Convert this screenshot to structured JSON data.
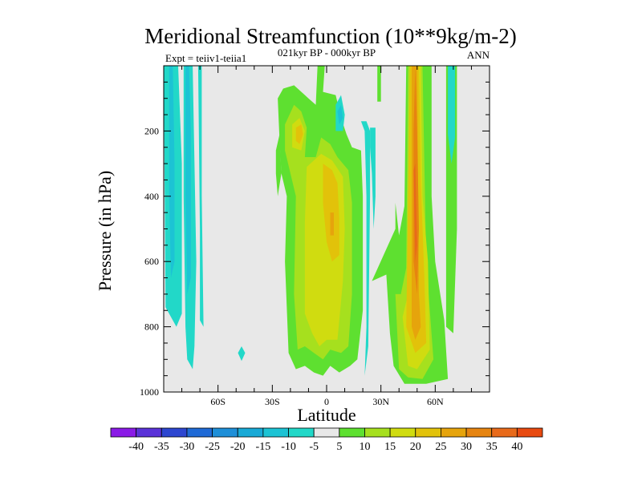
{
  "chart_data": {
    "type": "contour",
    "title": "Meridional Streamfunction (10**9kg/m-2)",
    "subtitle_left": "Expt = teiiv1-teiia1",
    "subtitle_center": "021kyr BP - 000kyr BP",
    "subtitle_right": "ANN",
    "xlabel": "Latitude",
    "ylabel": "Pressure (in hPa)",
    "xlim": [
      -90,
      90
    ],
    "ylim": [
      1000,
      0
    ],
    "x_ticks": [
      {
        "value": -60,
        "label": "60S"
      },
      {
        "value": -30,
        "label": "30S"
      },
      {
        "value": 0,
        "label": "0"
      },
      {
        "value": 30,
        "label": "30N"
      },
      {
        "value": 60,
        "label": "60N"
      }
    ],
    "y_ticks": [
      {
        "value": 200,
        "label": "200"
      },
      {
        "value": 400,
        "label": "400"
      },
      {
        "value": 600,
        "label": "600"
      },
      {
        "value": 800,
        "label": "800"
      },
      {
        "value": 1000,
        "label": "1000"
      }
    ],
    "colorbar": {
      "levels": [
        -40,
        -35,
        -30,
        -25,
        -20,
        -15,
        -10,
        -5,
        5,
        10,
        15,
        20,
        25,
        30,
        35,
        40
      ],
      "labels": [
        "-40",
        "-35",
        "-30",
        "-25",
        "-20",
        "-15",
        "-10",
        "-5",
        "5",
        "10",
        "15",
        "20",
        "25",
        "30",
        "35",
        "40"
      ],
      "colors": [
        "#8a1ae6",
        "#5a32d8",
        "#2d46d0",
        "#1f6ad6",
        "#1e8fd8",
        "#18a9d6",
        "#1cc3d4",
        "#22d8c8",
        "#e8e8e8",
        "#5ee030",
        "#a6e01e",
        "#d0dc10",
        "#e2c20a",
        "#e6a40c",
        "#e68410",
        "#e86a1a",
        "#e84a10"
      ]
    },
    "regions": [
      {
        "level": -5,
        "polygon": [
          [
            -90,
            0
          ],
          [
            -89,
            740
          ],
          [
            -83,
            800
          ],
          [
            -80,
            760
          ],
          [
            -80,
            300
          ],
          [
            -82,
            0
          ]
        ]
      },
      {
        "level": -5,
        "polygon": [
          [
            -79,
            0
          ],
          [
            -79,
            400
          ],
          [
            -78,
            800
          ],
          [
            -77,
            900
          ],
          [
            -74,
            930
          ],
          [
            -73,
            860
          ],
          [
            -72,
            600
          ],
          [
            -74,
            0
          ]
        ]
      },
      {
        "level": -5,
        "polygon": [
          [
            -71,
            0
          ],
          [
            -70,
            500
          ],
          [
            -70,
            780
          ],
          [
            -68,
            800
          ],
          [
            -69,
            400
          ],
          [
            -69,
            0
          ]
        ]
      },
      {
        "level": -10,
        "polygon": [
          [
            -78,
            0
          ],
          [
            -78,
            400
          ],
          [
            -77,
            700
          ],
          [
            -75,
            650
          ],
          [
            -75,
            200
          ],
          [
            -76,
            0
          ]
        ]
      },
      {
        "level": -10,
        "polygon": [
          [
            -87,
            0
          ],
          [
            -87,
            400
          ],
          [
            -86,
            650
          ],
          [
            -84,
            600
          ],
          [
            -84,
            300
          ],
          [
            -85,
            0
          ]
        ]
      },
      {
        "level": -5,
        "polygon": [
          [
            -49,
            880
          ],
          [
            -47,
            860
          ],
          [
            -45,
            880
          ],
          [
            -47,
            905
          ]
        ]
      },
      {
        "level": 5,
        "polygon": [
          [
            -28,
            260
          ],
          [
            -26,
            210
          ],
          [
            -25,
            330
          ],
          [
            -27,
            400
          ],
          [
            -28,
            330
          ]
        ]
      },
      {
        "level": 5,
        "polygon": [
          [
            -27,
            100
          ],
          [
            -24,
            70
          ],
          [
            -18,
            60
          ],
          [
            -10,
            100
          ],
          [
            -6,
            120
          ],
          [
            -5,
            0
          ],
          [
            -1,
            0
          ],
          [
            -2,
            80
          ],
          [
            5,
            90
          ],
          [
            8,
            160
          ],
          [
            11,
            210
          ],
          [
            14,
            250
          ],
          [
            19,
            260
          ],
          [
            20,
            400
          ],
          [
            20,
            750
          ],
          [
            17,
            900
          ],
          [
            13,
            920
          ],
          [
            7,
            940
          ],
          [
            2,
            920
          ],
          [
            -2,
            950
          ],
          [
            -7,
            940
          ],
          [
            -12,
            920
          ],
          [
            -17,
            930
          ],
          [
            -21,
            880
          ],
          [
            -23,
            600
          ],
          [
            -22,
            400
          ],
          [
            -25,
            330
          ],
          [
            -26,
            230
          ]
        ]
      },
      {
        "level": 10,
        "polygon": [
          [
            -23,
            180
          ],
          [
            -18,
            120
          ],
          [
            -14,
            140
          ],
          [
            -11,
            190
          ],
          [
            -12,
            280
          ],
          [
            -6,
            280
          ],
          [
            -3,
            220
          ],
          [
            2,
            240
          ],
          [
            6,
            280
          ],
          [
            12,
            320
          ],
          [
            14,
            420
          ],
          [
            14,
            700
          ],
          [
            12,
            860
          ],
          [
            8,
            880
          ],
          [
            2,
            870
          ],
          [
            -2,
            900
          ],
          [
            -7,
            880
          ],
          [
            -12,
            860
          ],
          [
            -16,
            870
          ],
          [
            -18,
            700
          ],
          [
            -17,
            400
          ],
          [
            -20,
            330
          ],
          [
            -23,
            260
          ]
        ]
      },
      {
        "level": 15,
        "polygon": [
          [
            -19,
            180
          ],
          [
            -15,
            160
          ],
          [
            -12,
            200
          ],
          [
            -14,
            260
          ],
          [
            -19,
            250
          ]
        ]
      },
      {
        "level": 15,
        "polygon": [
          [
            -11,
            310
          ],
          [
            -3,
            270
          ],
          [
            3,
            290
          ],
          [
            9,
            340
          ],
          [
            10,
            500
          ],
          [
            9,
            660
          ],
          [
            6,
            840
          ],
          [
            0,
            840
          ],
          [
            -4,
            860
          ],
          [
            -8,
            820
          ],
          [
            -12,
            760
          ],
          [
            -12,
            480
          ]
        ]
      },
      {
        "level": 20,
        "polygon": [
          [
            -17,
            190
          ],
          [
            -14,
            180
          ],
          [
            -13,
            210
          ],
          [
            -15,
            240
          ],
          [
            -17,
            230
          ]
        ]
      },
      {
        "level": 20,
        "polygon": [
          [
            -2,
            300
          ],
          [
            3,
            320
          ],
          [
            6,
            360
          ],
          [
            7,
            470
          ],
          [
            7,
            580
          ],
          [
            3,
            600
          ],
          [
            0,
            540
          ],
          [
            -2,
            420
          ]
        ]
      },
      {
        "level": 25,
        "polygon": [
          [
            2,
            450
          ],
          [
            4,
            450
          ],
          [
            4,
            520
          ],
          [
            2,
            520
          ]
        ]
      },
      {
        "level": -5,
        "polygon": [
          [
            5,
            120
          ],
          [
            8,
            90
          ],
          [
            10,
            150
          ],
          [
            9,
            200
          ],
          [
            5,
            200
          ]
        ]
      },
      {
        "level": -10,
        "polygon": [
          [
            6,
            140
          ],
          [
            8,
            120
          ],
          [
            9,
            160
          ],
          [
            7,
            180
          ]
        ]
      },
      {
        "level": -5,
        "polygon": [
          [
            19,
            170
          ],
          [
            21,
            200
          ],
          [
            22,
            400
          ],
          [
            22,
            800
          ],
          [
            21,
            950
          ],
          [
            23,
            860
          ],
          [
            24,
            400
          ],
          [
            24,
            200
          ],
          [
            22,
            170
          ]
        ]
      },
      {
        "level": -5,
        "polygon": [
          [
            24,
            190
          ],
          [
            27,
            190
          ],
          [
            27,
            400
          ],
          [
            26,
            500
          ],
          [
            25,
            330
          ],
          [
            24,
            250
          ]
        ]
      },
      {
        "level": 5,
        "polygon": [
          [
            28,
            0
          ],
          [
            30,
            0
          ],
          [
            30,
            110
          ],
          [
            28,
            110
          ]
        ]
      },
      {
        "level": 5,
        "polygon": [
          [
            25,
            660
          ],
          [
            33,
            640
          ],
          [
            35,
            820
          ],
          [
            37,
            920
          ],
          [
            43,
            975
          ],
          [
            55,
            975
          ],
          [
            67,
            960
          ],
          [
            65,
            780
          ],
          [
            60,
            600
          ],
          [
            58,
            400
          ],
          [
            58,
            0
          ],
          [
            44,
            0
          ],
          [
            43,
            430
          ],
          [
            40,
            520
          ],
          [
            38,
            420
          ],
          [
            38,
            500
          ]
        ]
      },
      {
        "level": 10,
        "polygon": [
          [
            38,
            700
          ],
          [
            41,
            700
          ],
          [
            44,
            620
          ],
          [
            45,
            0
          ],
          [
            53,
            0
          ],
          [
            55,
            600
          ],
          [
            59,
            900
          ],
          [
            53,
            960
          ],
          [
            45,
            955
          ],
          [
            40,
            930
          ]
        ]
      },
      {
        "level": 15,
        "polygon": [
          [
            42,
            770
          ],
          [
            45,
            700
          ],
          [
            46,
            0
          ],
          [
            52,
            0
          ],
          [
            53,
            400
          ],
          [
            56,
            600
          ],
          [
            57,
            870
          ],
          [
            50,
            930
          ],
          [
            45,
            920
          ]
        ]
      },
      {
        "level": 20,
        "polygon": [
          [
            44,
            800
          ],
          [
            46,
            0
          ],
          [
            51,
            0
          ],
          [
            52,
            350
          ],
          [
            54,
            650
          ],
          [
            55,
            850
          ],
          [
            49,
            880
          ]
        ]
      },
      {
        "level": 25,
        "polygon": [
          [
            47,
            600
          ],
          [
            47,
            0
          ],
          [
            50,
            0
          ],
          [
            51,
            700
          ],
          [
            52,
            800
          ],
          [
            49,
            840
          ],
          [
            47,
            800
          ]
        ]
      },
      {
        "level": 30,
        "polygon": [
          [
            48,
            200
          ],
          [
            49,
            0
          ],
          [
            50,
            200
          ],
          [
            51,
            500
          ],
          [
            50,
            700
          ],
          [
            48,
            600
          ]
        ]
      },
      {
        "level": 35,
        "polygon": [
          [
            48,
            320
          ],
          [
            49,
            300
          ],
          [
            50,
            550
          ],
          [
            49,
            600
          ]
        ]
      },
      {
        "level": 5,
        "polygon": [
          [
            66,
            0
          ],
          [
            72,
            0
          ],
          [
            72,
            500
          ],
          [
            70,
            820
          ],
          [
            66,
            800
          ]
        ]
      },
      {
        "level": -5,
        "polygon": [
          [
            67,
            0
          ],
          [
            71,
            0
          ],
          [
            71,
            220
          ],
          [
            69,
            300
          ],
          [
            67,
            210
          ]
        ]
      }
    ]
  }
}
